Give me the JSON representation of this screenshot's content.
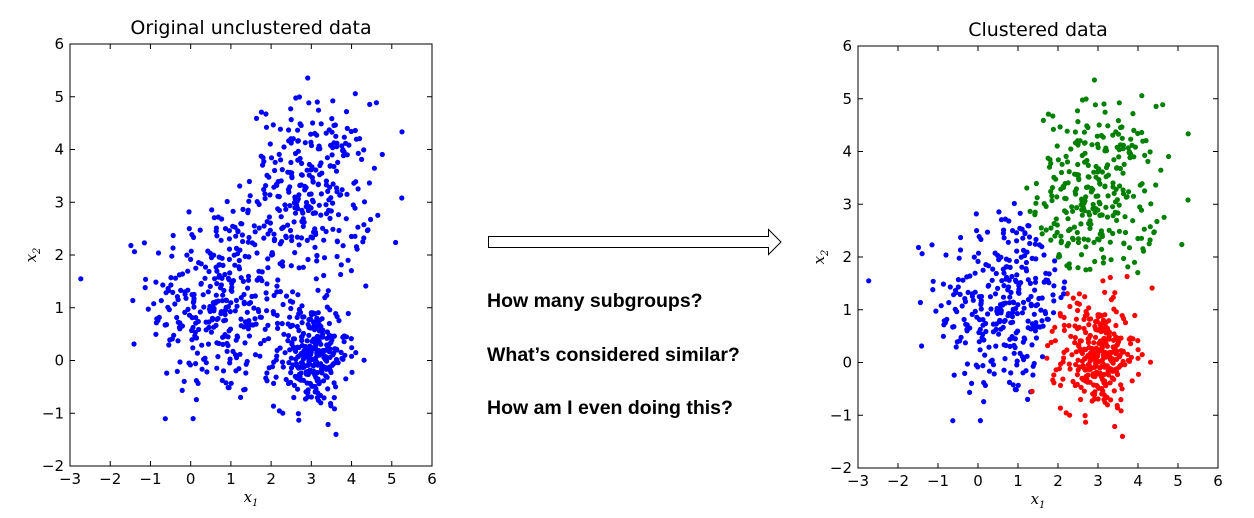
{
  "chart_data": [
    {
      "type": "scatter",
      "title": "Original unclustered data",
      "xlabel": "x_1",
      "ylabel": "x_2",
      "xlim": [
        -3,
        6
      ],
      "ylim": [
        -2,
        6
      ],
      "xticks": [
        -3,
        -2,
        -1,
        0,
        1,
        2,
        3,
        4,
        5,
        6
      ],
      "yticks": [
        -2,
        -1,
        0,
        1,
        2,
        3,
        4,
        5,
        6
      ],
      "grid": false,
      "series": [
        {
          "color": "#0000ff",
          "cluster": "all",
          "point_count_approx": 900
        }
      ]
    },
    {
      "type": "scatter",
      "title": "Clustered data",
      "xlabel": "x_1",
      "ylabel": "x_2",
      "xlim": [
        -3,
        6
      ],
      "ylim": [
        -2,
        6
      ],
      "xticks": [
        -3,
        -2,
        -1,
        0,
        1,
        2,
        3,
        4,
        5,
        6
      ],
      "yticks": [
        -2,
        -1,
        0,
        1,
        2,
        3,
        4,
        5,
        6
      ],
      "grid": false,
      "series": [
        {
          "color": "#0000ff",
          "cluster": "blue",
          "center_approx": [
            0.7,
            1.1
          ]
        },
        {
          "color": "#008000",
          "cluster": "green",
          "center_approx": [
            3.0,
            3.2
          ]
        },
        {
          "color": "#ff0000",
          "cluster": "red",
          "center_approx": [
            3.0,
            0.1
          ]
        }
      ]
    }
  ],
  "questions": [
    "How many subgroups?",
    "What’s considered similar?",
    "How am I even doing this?"
  ],
  "arrow": {
    "direction": "right",
    "fill": "#ffffff",
    "stroke": "#000000"
  }
}
